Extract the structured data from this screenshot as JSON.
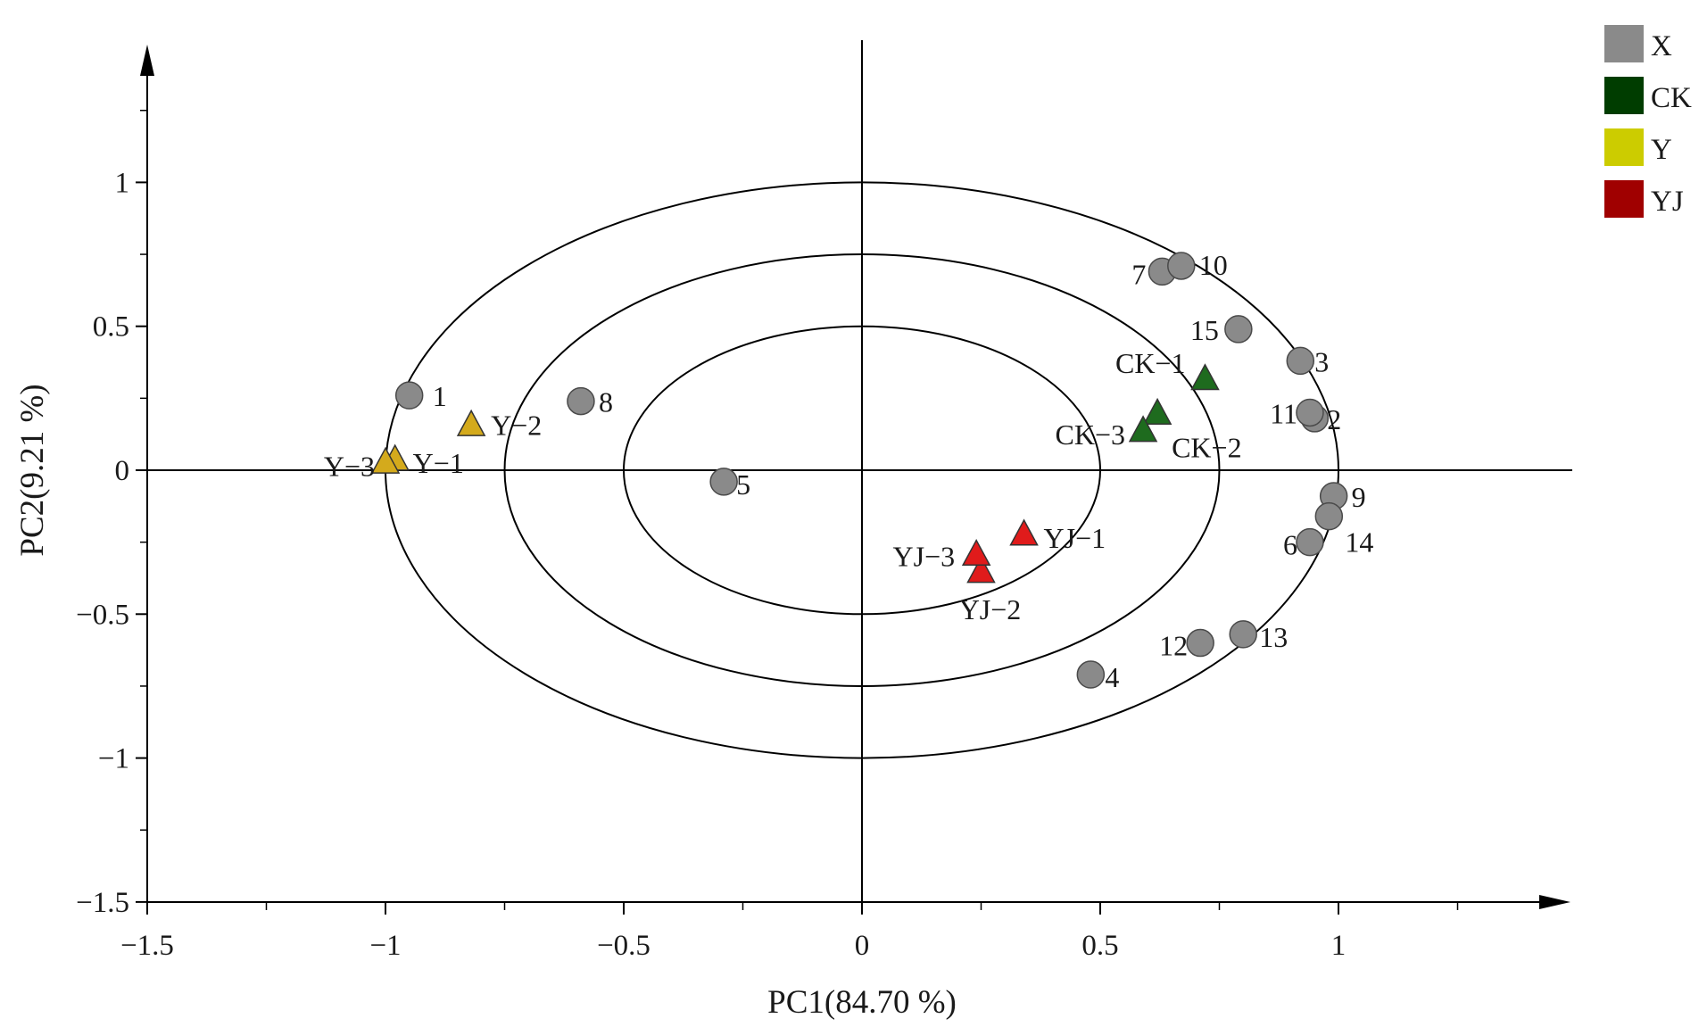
{
  "chart_data": {
    "type": "scatter",
    "title": "",
    "xlabel": "PC1(84.70 %)",
    "ylabel": "PC2(9.21 %)",
    "xlim": [
      -1.5,
      1.5
    ],
    "ylim": [
      -1.5,
      1.5
    ],
    "xticks": [
      {
        "value": -1.5,
        "label": "−1.5"
      },
      {
        "value": -1,
        "label": "−1"
      },
      {
        "value": -0.5,
        "label": "−0.5"
      },
      {
        "value": 0,
        "label": "0"
      },
      {
        "value": 0.5,
        "label": "0.5"
      },
      {
        "value": 1,
        "label": "1"
      }
    ],
    "yticks": [
      {
        "value": -1.5,
        "label": "−1.5"
      },
      {
        "value": -1,
        "label": "−1"
      },
      {
        "value": -0.5,
        "label": "−0.5"
      },
      {
        "value": 0,
        "label": "0"
      },
      {
        "value": 0.5,
        "label": "0.5"
      },
      {
        "value": 1,
        "label": "1"
      }
    ],
    "minor_tick_step": 0.25,
    "correlation_circles": [
      0.5,
      0.75,
      1.0
    ],
    "grid": false,
    "legend_position": "top-right",
    "series": [
      {
        "name": "X",
        "marker": "circle",
        "color": "#8a8a8a",
        "points": [
          {
            "label": "1",
            "x": -0.95,
            "y": 0.26
          },
          {
            "label": "2",
            "x": 0.95,
            "y": 0.18
          },
          {
            "label": "3",
            "x": 0.92,
            "y": 0.38
          },
          {
            "label": "4",
            "x": 0.48,
            "y": -0.71
          },
          {
            "label": "5",
            "x": -0.29,
            "y": -0.04
          },
          {
            "label": "6",
            "x": 0.94,
            "y": -0.25
          },
          {
            "label": "7",
            "x": 0.63,
            "y": 0.69
          },
          {
            "label": "8",
            "x": -0.59,
            "y": 0.24
          },
          {
            "label": "9",
            "x": 0.99,
            "y": -0.09
          },
          {
            "label": "10",
            "x": 0.67,
            "y": 0.71
          },
          {
            "label": "11",
            "x": 0.94,
            "y": 0.2
          },
          {
            "label": "12",
            "x": 0.71,
            "y": -0.6
          },
          {
            "label": "13",
            "x": 0.8,
            "y": -0.57
          },
          {
            "label": "14",
            "x": 0.98,
            "y": -0.16
          },
          {
            "label": "15",
            "x": 0.79,
            "y": 0.49
          }
        ]
      },
      {
        "name": "CK",
        "marker": "triangle",
        "color": "#1e6b1e",
        "points": [
          {
            "label": "CK−1",
            "x": 0.72,
            "y": 0.32
          },
          {
            "label": "CK−2",
            "x": 0.62,
            "y": 0.2
          },
          {
            "label": "CK−3",
            "x": 0.59,
            "y": 0.14
          }
        ]
      },
      {
        "name": "Y",
        "marker": "triangle",
        "color": "#d4aa1c",
        "points": [
          {
            "label": "Y−1",
            "x": -0.98,
            "y": 0.04
          },
          {
            "label": "Y−2",
            "x": -0.82,
            "y": 0.16
          },
          {
            "label": "Y−3",
            "x": -1.0,
            "y": 0.03
          }
        ]
      },
      {
        "name": "YJ",
        "marker": "triangle",
        "color": "#e01b1b",
        "points": [
          {
            "label": "YJ−1",
            "x": 0.34,
            "y": -0.22
          },
          {
            "label": "YJ−2",
            "x": 0.25,
            "y": -0.35
          },
          {
            "label": "YJ−3",
            "x": 0.24,
            "y": -0.29
          }
        ]
      }
    ],
    "legend": [
      {
        "name": "X",
        "color": "#8a8a8a"
      },
      {
        "name": "CK",
        "color": "#003d00"
      },
      {
        "name": "Y",
        "color": "#cccc00"
      },
      {
        "name": "YJ",
        "color": "#a00000"
      }
    ]
  }
}
